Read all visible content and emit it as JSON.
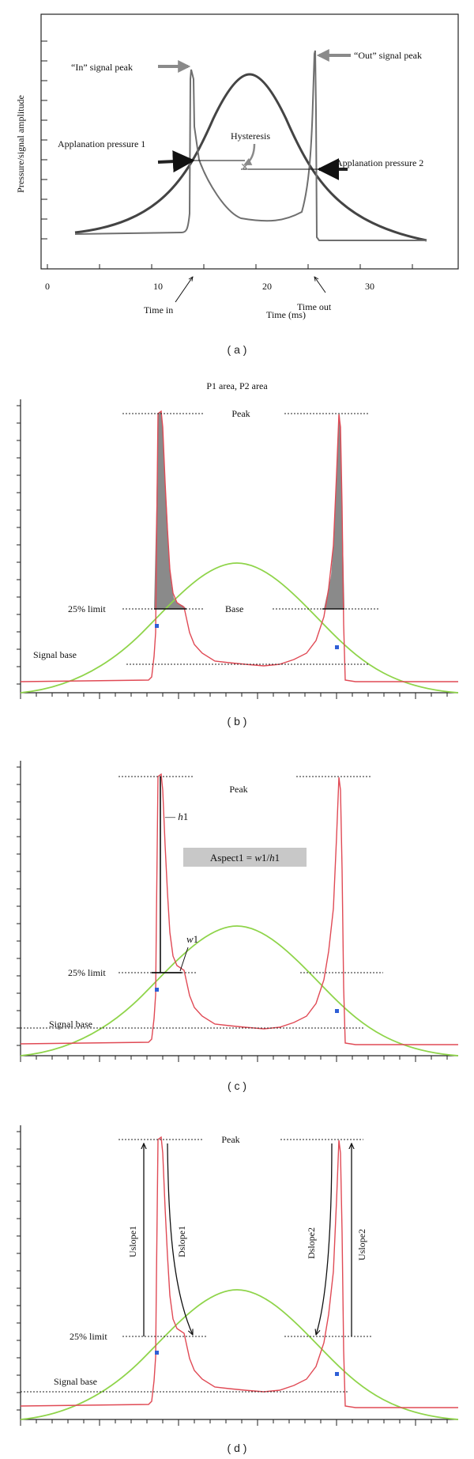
{
  "panel_a": {
    "y_axis_label": "Pressure/signal amplitude",
    "x_axis_label": "Time (ms)",
    "x_ticks": [
      "0",
      "10",
      "20",
      "30"
    ],
    "in_peak": "“In” signal peak",
    "out_peak": "“Out” signal peak",
    "applanation_1": "Applanation pressure 1",
    "applanation_2": "Applanation pressure 2",
    "hysteresis": "Hysteresis",
    "time_in": "Time in",
    "time_out": "Time out",
    "caption": "( a )"
  },
  "panel_b": {
    "title": "P1 area, P2 area",
    "peak": "Peak",
    "limit_25": "25% limit",
    "base": "Base",
    "signal_base": "Signal base",
    "caption": "( b )"
  },
  "panel_c": {
    "peak": "Peak",
    "h1_prefix": "— ",
    "h1": "h",
    "h1_sub": "1",
    "aspect_prefix": "Aspect1 = ",
    "aspect_w": "w",
    "aspect_mid": "1/",
    "aspect_h": "h",
    "aspect_end": "1",
    "w1": "w",
    "w1_sub": "1",
    "limit_25": "25% limit",
    "signal_base": "Signal base",
    "caption": "( c )"
  },
  "panel_d": {
    "peak": "Peak",
    "uslope1": "Uslope1",
    "dslope1": "Dslope1",
    "dslope2": "Dslope2",
    "uslope2": "Uslope2",
    "limit_25": "25% limit",
    "signal_base": "Signal base",
    "caption": "( d )"
  },
  "colors": {
    "signal": "#e04a55",
    "pressure": "#8fd44a",
    "fill": "#8a8a8a",
    "marker": "#2f5fd6",
    "box": "#c8c8c8"
  }
}
